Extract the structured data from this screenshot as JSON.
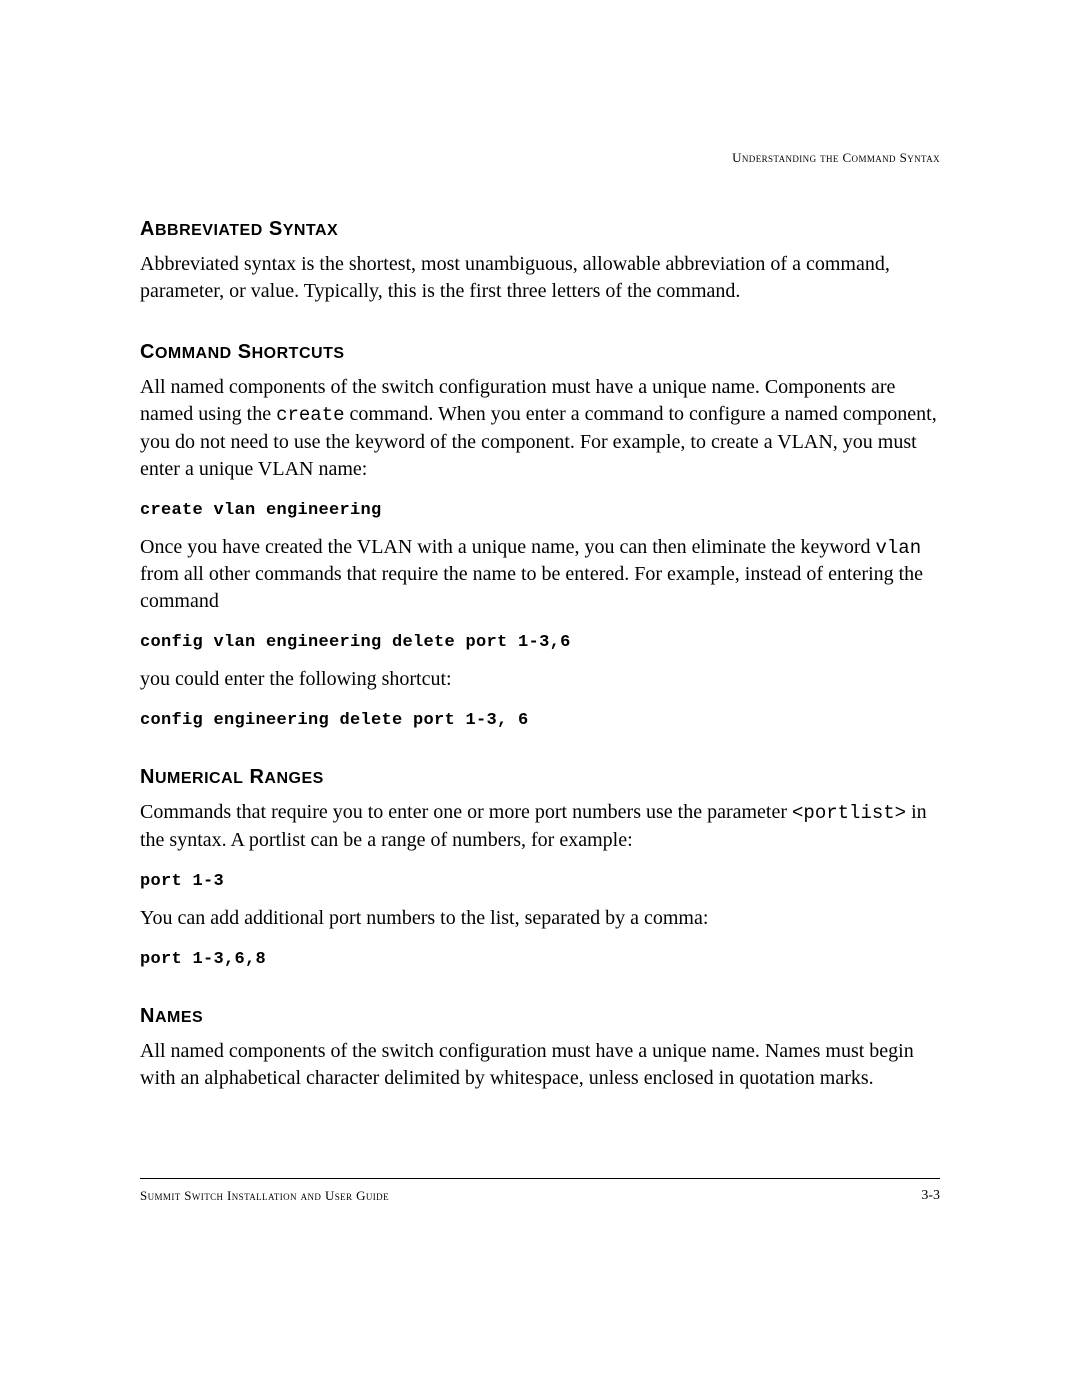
{
  "header": {
    "right": "Understanding the Command Syntax"
  },
  "sections": {
    "abbrev": {
      "title_first": "A",
      "title_rest": "BBREVIATED",
      "title_first2": "S",
      "title_rest2": "YNTAX",
      "p1": "Abbreviated syntax is the shortest, most unambiguous, allowable abbreviation of a command, parameter, or value. Typically, this is the first three letters of the command."
    },
    "shortcuts": {
      "title_first": "C",
      "title_rest": "OMMAND",
      "title_first2": "S",
      "title_rest2": "HORTCUTS",
      "p1a": "All named components of the switch configuration must have a unique name. Components are named using the ",
      "p1_code": "create",
      "p1b": " command. When you enter a command to configure a named component, you do not need to use the keyword of the component. For example, to create a VLAN, you must enter a unique VLAN name:",
      "code1": "create vlan engineering",
      "p2a": "Once you have created the VLAN with a unique name, you can then eliminate the keyword ",
      "p2_code": "vlan",
      "p2b": " from all other commands that require the name to be entered. For example, instead of entering the command",
      "code2": "config vlan engineering delete port 1-3,6",
      "p3": "you could enter the following shortcut:",
      "code3": "config engineering delete port 1-3, 6"
    },
    "ranges": {
      "title_first": "N",
      "title_rest": "UMERICAL",
      "title_first2": "R",
      "title_rest2": "ANGES",
      "p1a": "Commands that require you to enter one or more port numbers use the parameter ",
      "p1_code": "<portlist>",
      "p1b": " in the syntax. A portlist can be a range of numbers, for example:",
      "code1": "port 1-3",
      "p2": "You can add additional port numbers to the list, separated by a comma:",
      "code2": "port 1-3,6,8"
    },
    "names": {
      "title_first": "N",
      "title_rest": "AMES",
      "p1": "All named components of the switch configuration must have a unique name. Names must begin with an alphabetical character delimited by whitespace, unless enclosed in quotation marks."
    }
  },
  "footer": {
    "left": "Summit Switch Installation and User Guide",
    "right": "3-3"
  }
}
